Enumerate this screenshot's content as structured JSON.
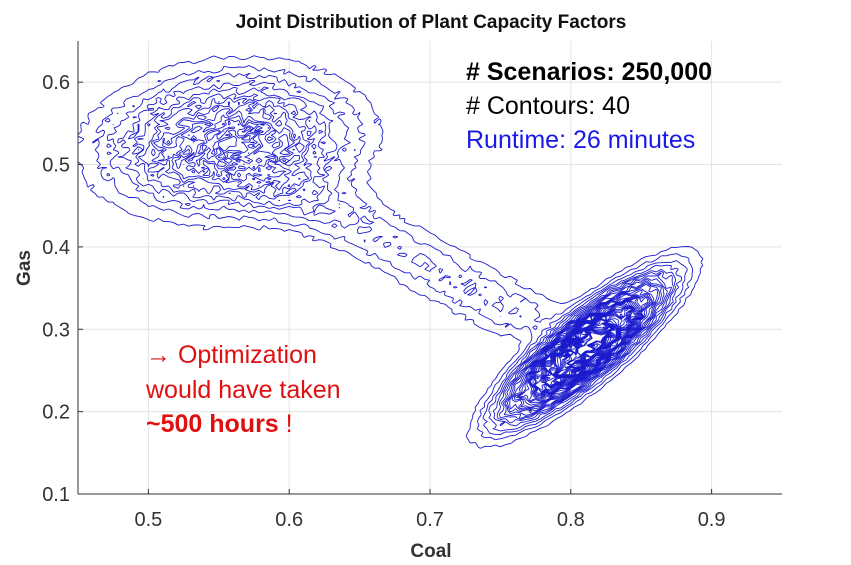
{
  "chart_data": {
    "type": "contour",
    "title": "Joint Distribution of Plant Capacity Factors",
    "xlabel": "Coal",
    "ylabel": "Gas",
    "xlim": [
      0.45,
      0.95
    ],
    "ylim": [
      0.1,
      0.65
    ],
    "xticks": [
      0.5,
      0.6,
      0.7,
      0.8,
      0.9
    ],
    "yticks": [
      0.1,
      0.2,
      0.3,
      0.4,
      0.5,
      0.6
    ],
    "grid": true,
    "line_color": "#1a1acd",
    "modes": [
      {
        "name": "upper-left mode",
        "cx": 0.557,
        "cy": 0.527,
        "sx": 0.052,
        "sy": 0.05,
        "rho": 0.1,
        "weight": 0.3
      },
      {
        "name": "lower-right mode",
        "cx": 0.81,
        "cy": 0.278,
        "sx": 0.032,
        "sy": 0.047,
        "rho": 0.85,
        "weight": 1.0
      }
    ],
    "bridge": {
      "from": [
        0.6,
        0.47
      ],
      "to": [
        0.76,
        0.32
      ],
      "weight": 0.08
    }
  },
  "annotations": {
    "scenarios": "# Scenarios: 250,000",
    "contours": "# Contours: 40",
    "runtime": "Runtime: 26 minutes",
    "runtime_color": "#1a1ae6",
    "note_arrow": "→",
    "note_line1": " Optimization",
    "note_line2": "would have taken",
    "note_bold": "~500 hours",
    "note_end": " !",
    "note_color": "#e01010"
  }
}
